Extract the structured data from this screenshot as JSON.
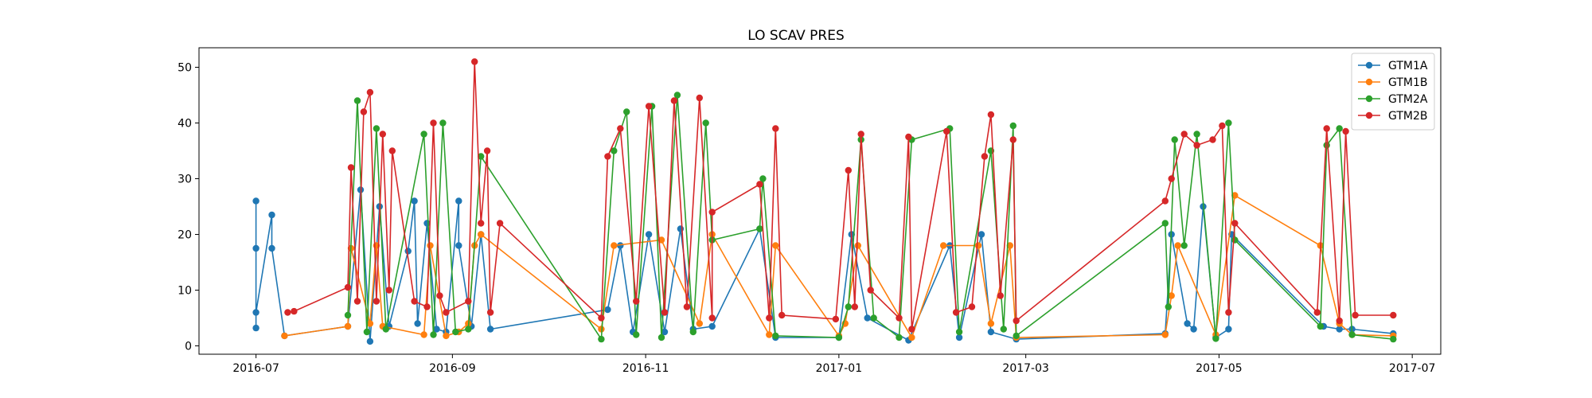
{
  "chart_data": {
    "type": "line",
    "title": "LO SCAV PRES",
    "xlabel": "",
    "ylabel": "",
    "x_axis": {
      "type": "date",
      "range": [
        "2016-06-13",
        "2017-07-10"
      ],
      "ticks": [
        "2016-07-01",
        "2016-09-01",
        "2016-11-01",
        "2017-01-01",
        "2017-03-01",
        "2017-05-01",
        "2017-07-01"
      ],
      "tick_labels": [
        "2016-07",
        "2016-09",
        "2016-11",
        "2017-01",
        "2017-03",
        "2017-05",
        "2017-07"
      ]
    },
    "y_axis": {
      "range": [
        -1.5,
        53.5
      ],
      "ticks": [
        0,
        10,
        20,
        30,
        40,
        50
      ],
      "tick_labels": [
        "0",
        "10",
        "20",
        "30",
        "40",
        "50"
      ]
    },
    "grid": false,
    "legend": {
      "placement": "top-right"
    },
    "series": [
      {
        "name": "GTM1A",
        "color": "#1f77b4",
        "points": [
          [
            "2016-07-01",
            3.2
          ],
          [
            "2016-07-01",
            26
          ],
          [
            "2016-07-01",
            17.5
          ],
          [
            "2016-07-01",
            6
          ],
          [
            "2016-07-06",
            23.5
          ],
          [
            "2016-07-06",
            17.5
          ],
          [
            "2016-07-10",
            1.8
          ],
          [
            "2016-07-30",
            3.5
          ],
          [
            "2016-08-03",
            28
          ],
          [
            "2016-08-06",
            0.8
          ],
          [
            "2016-08-09",
            25
          ],
          [
            "2016-08-12",
            3.5
          ],
          [
            "2016-08-18",
            17
          ],
          [
            "2016-08-20",
            26
          ],
          [
            "2016-08-21",
            4
          ],
          [
            "2016-08-24",
            22
          ],
          [
            "2016-08-27",
            3
          ],
          [
            "2016-08-30",
            2.5
          ],
          [
            "2016-09-03",
            26
          ],
          [
            "2016-09-03",
            18
          ],
          [
            "2016-09-07",
            3.5
          ],
          [
            "2016-09-10",
            20
          ],
          [
            "2016-09-13",
            3
          ],
          [
            "2016-10-20",
            6.5
          ],
          [
            "2016-10-24",
            18
          ],
          [
            "2016-10-28",
            2.5
          ],
          [
            "2016-11-02",
            20
          ],
          [
            "2016-11-07",
            2.5
          ],
          [
            "2016-11-12",
            21
          ],
          [
            "2016-11-16",
            3
          ],
          [
            "2016-11-22",
            3.5
          ],
          [
            "2016-12-07",
            21
          ],
          [
            "2016-12-12",
            1.5
          ],
          [
            "2017-01-01",
            1.5
          ],
          [
            "2017-01-05",
            20
          ],
          [
            "2017-01-10",
            5
          ],
          [
            "2017-01-23",
            1
          ],
          [
            "2017-02-05",
            18
          ],
          [
            "2017-02-08",
            1.5
          ],
          [
            "2017-02-15",
            20
          ],
          [
            "2017-02-18",
            2.5
          ],
          [
            "2017-02-26",
            1.2
          ],
          [
            "2017-04-14",
            2.2
          ],
          [
            "2017-04-16",
            20
          ],
          [
            "2017-04-21",
            4
          ],
          [
            "2017-04-23",
            3
          ],
          [
            "2017-04-26",
            25
          ],
          [
            "2017-04-30",
            1.5
          ],
          [
            "2017-05-04",
            3
          ],
          [
            "2017-05-05",
            20
          ],
          [
            "2017-06-03",
            3.5
          ],
          [
            "2017-06-08",
            3
          ],
          [
            "2017-06-12",
            3
          ],
          [
            "2017-06-25",
            2.2
          ]
        ]
      },
      {
        "name": "GTM1B",
        "color": "#ff7f0e",
        "points": [
          [
            "2016-07-10",
            1.8
          ],
          [
            "2016-07-30",
            3.5
          ],
          [
            "2016-07-31",
            17.5
          ],
          [
            "2016-08-06",
            4
          ],
          [
            "2016-08-08",
            18
          ],
          [
            "2016-08-10",
            3.5
          ],
          [
            "2016-08-23",
            2
          ],
          [
            "2016-08-25",
            18
          ],
          [
            "2016-08-30",
            1.8
          ],
          [
            "2016-09-03",
            2.5
          ],
          [
            "2016-09-06",
            4
          ],
          [
            "2016-09-08",
            18
          ],
          [
            "2016-09-10",
            20
          ],
          [
            "2016-10-18",
            3
          ],
          [
            "2016-10-22",
            18
          ],
          [
            "2016-11-06",
            19
          ],
          [
            "2016-11-18",
            4
          ],
          [
            "2016-11-22",
            20
          ],
          [
            "2016-12-10",
            2
          ],
          [
            "2016-12-12",
            18
          ],
          [
            "2017-01-01",
            1.8
          ],
          [
            "2017-01-03",
            4
          ],
          [
            "2017-01-07",
            18
          ],
          [
            "2017-01-24",
            1.5
          ],
          [
            "2017-02-03",
            18
          ],
          [
            "2017-02-14",
            18
          ],
          [
            "2017-02-18",
            4
          ],
          [
            "2017-02-24",
            18
          ],
          [
            "2017-02-26",
            1.5
          ],
          [
            "2017-04-14",
            2
          ],
          [
            "2017-04-16",
            9
          ],
          [
            "2017-04-18",
            18
          ],
          [
            "2017-04-30",
            2
          ],
          [
            "2017-05-06",
            27
          ],
          [
            "2017-06-02",
            18
          ],
          [
            "2017-06-08",
            4
          ],
          [
            "2017-06-12",
            2
          ],
          [
            "2017-06-25",
            1.8
          ]
        ]
      },
      {
        "name": "GTM2A",
        "color": "#2ca02c",
        "points": [
          [
            "2016-07-30",
            5.5
          ],
          [
            "2016-08-02",
            44
          ],
          [
            "2016-08-05",
            2.5
          ],
          [
            "2016-08-08",
            39
          ],
          [
            "2016-08-11",
            3
          ],
          [
            "2016-08-23",
            38
          ],
          [
            "2016-08-26",
            2
          ],
          [
            "2016-08-29",
            40
          ],
          [
            "2016-09-02",
            2.5
          ],
          [
            "2016-09-06",
            3
          ],
          [
            "2016-09-10",
            34
          ],
          [
            "2016-10-18",
            1.2
          ],
          [
            "2016-10-22",
            35
          ],
          [
            "2016-10-26",
            42
          ],
          [
            "2016-10-29",
            2
          ],
          [
            "2016-11-03",
            43
          ],
          [
            "2016-11-06",
            1.5
          ],
          [
            "2016-11-11",
            45
          ],
          [
            "2016-11-16",
            2.5
          ],
          [
            "2016-11-20",
            40
          ],
          [
            "2016-11-22",
            19
          ],
          [
            "2016-12-07",
            21
          ],
          [
            "2016-12-08",
            30
          ],
          [
            "2016-12-12",
            1.8
          ],
          [
            "2017-01-01",
            1.5
          ],
          [
            "2017-01-04",
            7
          ],
          [
            "2017-01-08",
            37
          ],
          [
            "2017-01-12",
            5
          ],
          [
            "2017-01-20",
            1.5
          ],
          [
            "2017-01-24",
            37
          ],
          [
            "2017-02-05",
            39
          ],
          [
            "2017-02-08",
            2.5
          ],
          [
            "2017-02-18",
            35
          ],
          [
            "2017-02-22",
            3
          ],
          [
            "2017-02-25",
            39.5
          ],
          [
            "2017-02-26",
            1.8
          ],
          [
            "2017-04-14",
            22
          ],
          [
            "2017-04-15",
            7
          ],
          [
            "2017-04-17",
            37
          ],
          [
            "2017-04-20",
            18
          ],
          [
            "2017-04-24",
            38
          ],
          [
            "2017-04-30",
            1.3
          ],
          [
            "2017-05-04",
            40
          ],
          [
            "2017-05-06",
            19
          ],
          [
            "2017-06-02",
            3.5
          ],
          [
            "2017-06-04",
            36
          ],
          [
            "2017-06-08",
            39
          ],
          [
            "2017-06-12",
            2
          ],
          [
            "2017-06-25",
            1.2
          ]
        ]
      },
      {
        "name": "GTM2B",
        "color": "#d62728",
        "points": [
          [
            "2016-07-11",
            6
          ],
          [
            "2016-07-13",
            6.2
          ],
          [
            "2016-07-30",
            10.5
          ],
          [
            "2016-07-31",
            32
          ],
          [
            "2016-08-02",
            8
          ],
          [
            "2016-08-04",
            42
          ],
          [
            "2016-08-06",
            45.5
          ],
          [
            "2016-08-08",
            8
          ],
          [
            "2016-08-10",
            38
          ],
          [
            "2016-08-12",
            10
          ],
          [
            "2016-08-13",
            35
          ],
          [
            "2016-08-20",
            8
          ],
          [
            "2016-08-24",
            7
          ],
          [
            "2016-08-26",
            40
          ],
          [
            "2016-08-28",
            9
          ],
          [
            "2016-08-30",
            6
          ],
          [
            "2016-09-06",
            8
          ],
          [
            "2016-09-08",
            51
          ],
          [
            "2016-09-10",
            22
          ],
          [
            "2016-09-12",
            35
          ],
          [
            "2016-09-13",
            6
          ],
          [
            "2016-09-16",
            22
          ],
          [
            "2016-10-18",
            5
          ],
          [
            "2016-10-20",
            34
          ],
          [
            "2016-10-24",
            39
          ],
          [
            "2016-10-29",
            8
          ],
          [
            "2016-11-02",
            43
          ],
          [
            "2016-11-07",
            6
          ],
          [
            "2016-11-10",
            44
          ],
          [
            "2016-11-14",
            7
          ],
          [
            "2016-11-18",
            44.5
          ],
          [
            "2016-11-22",
            5
          ],
          [
            "2016-11-22",
            24
          ],
          [
            "2016-12-07",
            29
          ],
          [
            "2016-12-10",
            5
          ],
          [
            "2016-12-12",
            39
          ],
          [
            "2016-12-14",
            5.5
          ],
          [
            "2016-12-31",
            4.8
          ],
          [
            "2017-01-04",
            31.5
          ],
          [
            "2017-01-06",
            7
          ],
          [
            "2017-01-08",
            38
          ],
          [
            "2017-01-11",
            10
          ],
          [
            "2017-01-20",
            5
          ],
          [
            "2017-01-23",
            37.5
          ],
          [
            "2017-01-24",
            3
          ],
          [
            "2017-02-04",
            38.5
          ],
          [
            "2017-02-07",
            6
          ],
          [
            "2017-02-12",
            7
          ],
          [
            "2017-02-16",
            34
          ],
          [
            "2017-02-18",
            41.5
          ],
          [
            "2017-02-21",
            9
          ],
          [
            "2017-02-25",
            37
          ],
          [
            "2017-02-26",
            4.5
          ],
          [
            "2017-04-14",
            26
          ],
          [
            "2017-04-16",
            30
          ],
          [
            "2017-04-20",
            38
          ],
          [
            "2017-04-24",
            36
          ],
          [
            "2017-04-29",
            37
          ],
          [
            "2017-05-02",
            39.5
          ],
          [
            "2017-05-04",
            6
          ],
          [
            "2017-05-06",
            22
          ],
          [
            "2017-06-01",
            6
          ],
          [
            "2017-06-04",
            39
          ],
          [
            "2017-06-08",
            4.5
          ],
          [
            "2017-06-10",
            38.5
          ],
          [
            "2017-06-13",
            5.5
          ],
          [
            "2017-06-25",
            5.5
          ]
        ]
      }
    ]
  }
}
